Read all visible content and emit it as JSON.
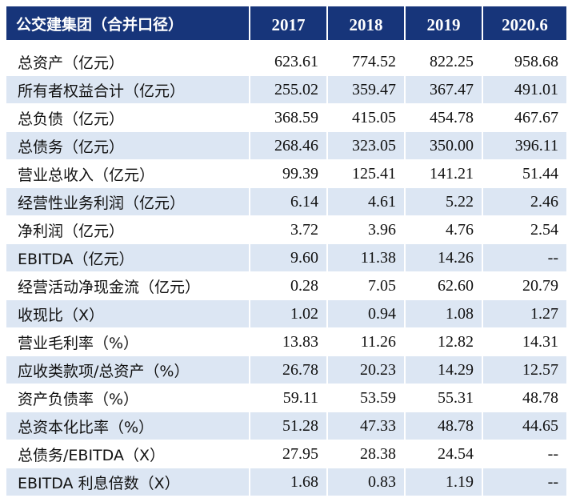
{
  "header": {
    "label": "公交建集团（合并口径）",
    "years": [
      "2017",
      "2018",
      "2019",
      "2020.6"
    ]
  },
  "rows": [
    {
      "label": "总资产（亿元）",
      "values": [
        "623.61",
        "774.52",
        "822.25",
        "958.68"
      ]
    },
    {
      "label": "所有者权益合计（亿元）",
      "values": [
        "255.02",
        "359.47",
        "367.47",
        "491.01"
      ]
    },
    {
      "label": "总负债（亿元）",
      "values": [
        "368.59",
        "415.05",
        "454.78",
        "467.67"
      ]
    },
    {
      "label": "总债务（亿元）",
      "values": [
        "268.46",
        "323.05",
        "350.00",
        "396.11"
      ]
    },
    {
      "label": "营业总收入（亿元）",
      "values": [
        "99.39",
        "125.41",
        "141.21",
        "51.44"
      ]
    },
    {
      "label": "经营性业务利润（亿元）",
      "values": [
        "6.14",
        "4.61",
        "5.22",
        "2.46"
      ]
    },
    {
      "label": "净利润（亿元）",
      "values": [
        "3.72",
        "3.96",
        "4.76",
        "2.54"
      ]
    },
    {
      "label": "EBITDA（亿元）",
      "values": [
        "9.60",
        "11.38",
        "14.26",
        "--"
      ]
    },
    {
      "label": "经营活动净现金流（亿元）",
      "values": [
        "0.28",
        "7.05",
        "62.60",
        "20.79"
      ]
    },
    {
      "label": "收现比（X）",
      "values": [
        "1.02",
        "0.94",
        "1.08",
        "1.27"
      ]
    },
    {
      "label": "营业毛利率（%）",
      "values": [
        "13.83",
        "11.26",
        "12.82",
        "14.31"
      ]
    },
    {
      "label": "应收类款项/总资产（%）",
      "values": [
        "26.78",
        "20.23",
        "14.29",
        "12.57"
      ]
    },
    {
      "label": "资产负债率（%）",
      "values": [
        "59.11",
        "53.59",
        "55.31",
        "48.78"
      ]
    },
    {
      "label": "总资本化比率（%）",
      "values": [
        "51.28",
        "47.33",
        "48.78",
        "44.65"
      ]
    },
    {
      "label": "总债务/EBITDA（X）",
      "values": [
        "27.95",
        "28.38",
        "24.54",
        "--"
      ]
    },
    {
      "label": "EBITDA 利息倍数（X）",
      "values": [
        "1.68",
        "0.83",
        "1.19",
        "--"
      ]
    }
  ],
  "colors": {
    "header_bg": "#17357a",
    "header_text": "#ffffff",
    "shaded_row": "#dce6f3"
  }
}
